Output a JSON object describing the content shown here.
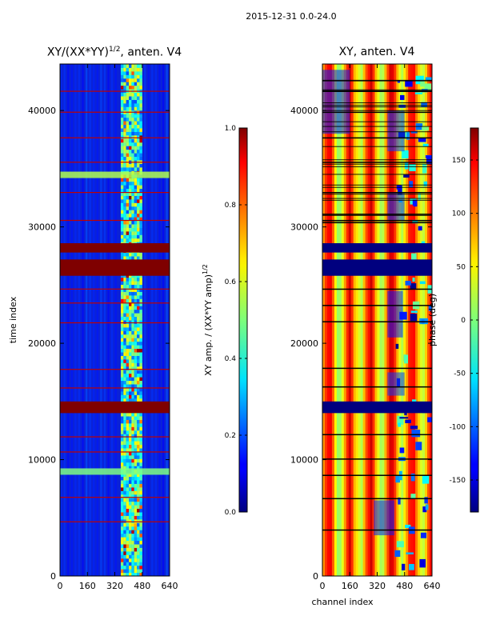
{
  "figure": {
    "suptitle": "2015-12-31 0.0-24.0"
  },
  "chart_data": [
    {
      "type": "heatmap",
      "title": "XY/(XX*YY)^{1/2}, anten. V4",
      "title_prefix": "XY/(XX*YY)",
      "title_exponent": "1/2",
      "title_suffix": ", anten. V4",
      "xlabel": "",
      "ylabel": "time index",
      "xlim": [
        0,
        640
      ],
      "ylim": [
        0,
        44000
      ],
      "xticks": [
        0,
        160,
        320,
        480,
        640
      ],
      "yticks": [
        0,
        10000,
        20000,
        30000,
        40000
      ],
      "colormap": "jet",
      "colorbar": {
        "label": "XY amp. / (XX*YY amp)^{1/2}",
        "label_prefix": "XY amp. / (XX*YY amp)",
        "label_exponent": "1/2",
        "min": 0.0,
        "max": 1.0,
        "ticks": [
          0.0,
          0.2,
          0.4,
          0.6,
          0.8,
          1.0
        ],
        "tick_labels": [
          "0.0",
          "0.2",
          "0.4",
          "0.6",
          "0.8",
          "1.0"
        ]
      },
      "saturated_bands": [
        [
          14000,
          15000
        ],
        [
          25800,
          27200
        ],
        [
          27800,
          28600
        ]
      ],
      "flagged_rows": [
        4700,
        6800,
        10700,
        12000,
        16200,
        17800,
        21800,
        23500,
        24700,
        30600,
        33000,
        35600,
        37700,
        39900,
        41700
      ],
      "bright_channel_range": [
        340,
        480
      ]
    },
    {
      "type": "heatmap",
      "title": "XY, anten. V4",
      "xlabel": "channel index",
      "ylabel": "",
      "xlim": [
        0,
        640
      ],
      "ylim": [
        0,
        44000
      ],
      "xticks": [
        0,
        160,
        320,
        480,
        640
      ],
      "yticks": [
        0,
        10000,
        20000,
        30000,
        40000
      ],
      "colormap": "jet",
      "colorbar": {
        "label": "phase (deg)",
        "min": -180,
        "max": 180,
        "ticks": [
          -150,
          -100,
          -50,
          0,
          50,
          100,
          150
        ],
        "tick_labels": [
          "-150",
          "-100",
          "-50",
          "0",
          "50",
          "100",
          "150"
        ]
      },
      "flagged_bands": [
        [
          14000,
          15000
        ],
        [
          25800,
          27200
        ],
        [
          27800,
          28600
        ]
      ],
      "flagged_rows": [
        4000,
        6700,
        8700,
        10100,
        12200,
        16300,
        17900,
        21900,
        23300,
        24700,
        30600,
        33000,
        35600,
        37700,
        39900,
        41700
      ]
    }
  ]
}
